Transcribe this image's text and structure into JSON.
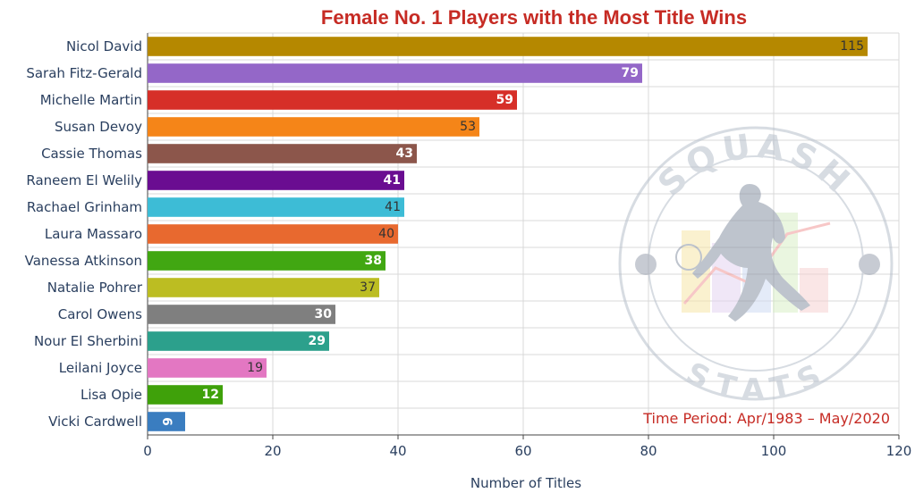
{
  "chart_data": {
    "type": "bar",
    "orientation": "horizontal",
    "title": "Female No. 1 Players with the Most Title Wins",
    "xlabel": "Number of Titles",
    "ylabel": "",
    "xlim": [
      0,
      120
    ],
    "xticks": [
      0,
      20,
      40,
      60,
      80,
      100,
      120
    ],
    "grid": true,
    "legend": "none",
    "annotation": "Time Period: Apr/1983 – May/2020",
    "categories": [
      "Nicol David",
      "Sarah Fitz-Gerald",
      "Michelle Martin",
      "Susan Devoy",
      "Cassie Thomas",
      "Raneem El Welily",
      "Rachael Grinham",
      "Laura Massaro",
      "Vanessa Atkinson",
      "Natalie Pohrer",
      "Carol Owens",
      "Nour El Sherbini",
      "Leilani Joyce",
      "Lisa Opie",
      "Vicki Cardwell"
    ],
    "values": [
      115,
      79,
      59,
      53,
      43,
      41,
      41,
      40,
      38,
      37,
      30,
      29,
      19,
      12,
      6
    ],
    "data_labels": [
      "115",
      "79",
      "59",
      "53",
      "43",
      "41",
      "41",
      "40",
      "38",
      "37",
      "30",
      "29",
      "19",
      "12",
      "6"
    ],
    "colors": [
      "#b58800",
      "#9467c8",
      "#d62f28",
      "#f58518",
      "#8c564b",
      "#6a0d91",
      "#3dbcd6",
      "#e8692f",
      "#41a712",
      "#bcbd22",
      "#7f7f7f",
      "#2ca08c",
      "#e377c2",
      "#3fa10a",
      "#3a7dc0"
    ],
    "label_colors": [
      "#333333",
      "#ffffff",
      "#ffffff",
      "#333333",
      "#ffffff",
      "#ffffff",
      "#333333",
      "#333333",
      "#ffffff",
      "#333333",
      "#ffffff",
      "#ffffff",
      "#333333",
      "#ffffff",
      "#ffffff"
    ],
    "title_color": "#c62b24",
    "annotation_color": "#c62b24"
  },
  "watermark": {
    "top_text": "SQUASH",
    "bottom_text": "STATS"
  }
}
